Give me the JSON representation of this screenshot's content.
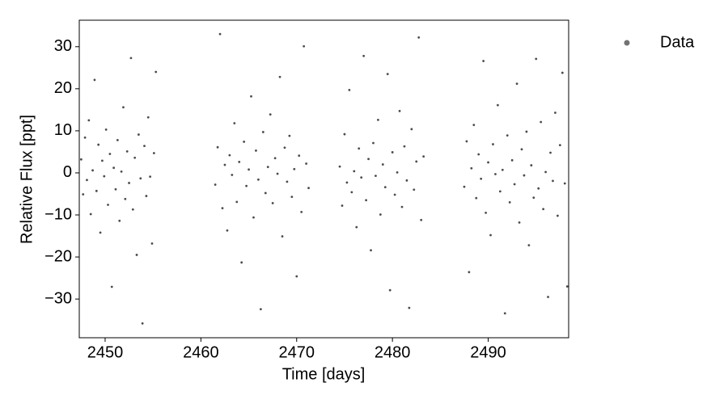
{
  "chart_data": {
    "type": "scatter",
    "xlabel": "Time [days]",
    "ylabel": "Relative Flux [ppt]",
    "xlim": [
      2447.3,
      2498.4
    ],
    "ylim": [
      -39.2,
      36.3
    ],
    "xticks": [
      2450,
      2460,
      2470,
      2480,
      2490
    ],
    "yticks": [
      {
        "value": -30,
        "label": "−30"
      },
      {
        "value": -20,
        "label": "−20"
      },
      {
        "value": -10,
        "label": "−10"
      },
      0,
      10,
      20,
      30
    ],
    "grid": false,
    "legend": "outside-right",
    "series": [
      {
        "name": "Data",
        "color": "#000000",
        "x": [
          2447.5,
          2447.7,
          2447.9,
          2448.1,
          2448.3,
          2448.5,
          2448.7,
          2448.9,
          2449.1,
          2449.3,
          2449.5,
          2449.7,
          2449.9,
          2450.1,
          2450.3,
          2450.5,
          2450.7,
          2450.9,
          2451.1,
          2451.3,
          2451.5,
          2451.7,
          2451.9,
          2452.1,
          2452.3,
          2452.5,
          2452.7,
          2452.9,
          2453.1,
          2453.3,
          2453.5,
          2453.7,
          2453.9,
          2454.1,
          2454.3,
          2454.5,
          2454.7,
          2454.9,
          2455.1,
          2455.3,
          2461.5,
          2461.75,
          2462.0,
          2462.25,
          2462.5,
          2462.75,
          2463.0,
          2463.25,
          2463.5,
          2463.75,
          2464.0,
          2464.25,
          2464.5,
          2464.75,
          2465.0,
          2465.25,
          2465.5,
          2465.75,
          2466.0,
          2466.25,
          2466.5,
          2466.75,
          2467.0,
          2467.25,
          2467.5,
          2467.75,
          2468.0,
          2468.25,
          2468.5,
          2468.75,
          2469.0,
          2469.25,
          2469.5,
          2469.75,
          2470.0,
          2470.25,
          2470.5,
          2470.75,
          2471.0,
          2471.25,
          2474.5,
          2474.75,
          2475.0,
          2475.25,
          2475.5,
          2475.75,
          2476.0,
          2476.25,
          2476.5,
          2476.75,
          2477.0,
          2477.25,
          2477.5,
          2477.75,
          2478.0,
          2478.25,
          2478.5,
          2478.75,
          2479.0,
          2479.25,
          2479.5,
          2479.75,
          2480.0,
          2480.25,
          2480.5,
          2480.75,
          2481.0,
          2481.25,
          2481.5,
          2481.75,
          2482.0,
          2482.25,
          2482.5,
          2482.75,
          2483.0,
          2483.25,
          2487.5,
          2487.75,
          2488.0,
          2488.25,
          2488.5,
          2488.75,
          2489.0,
          2489.25,
          2489.5,
          2489.75,
          2490.0,
          2490.25,
          2490.5,
          2490.75,
          2491.0,
          2491.25,
          2491.5,
          2491.75,
          2492.0,
          2492.25,
          2492.5,
          2492.75,
          2493.0,
          2493.25,
          2493.5,
          2493.75,
          2494.0,
          2494.25,
          2494.5,
          2494.75,
          2495.0,
          2495.25,
          2495.5,
          2495.75,
          2496.0,
          2496.25,
          2496.5,
          2496.75,
          2497.0,
          2497.25,
          2497.5,
          2497.75,
          2498.0,
          2498.25
        ],
        "values": [
          3.2,
          -5.1,
          8.4,
          -1.7,
          12.5,
          -9.8,
          0.6,
          22.1,
          -4.3,
          6.7,
          -14.2,
          2.9,
          -0.8,
          10.3,
          -7.6,
          4.5,
          -27.1,
          1.2,
          -3.9,
          7.8,
          -11.4,
          0.3,
          15.6,
          -6.2,
          5.1,
          -2.4,
          27.3,
          -8.7,
          3.6,
          -19.5,
          9.1,
          -1.3,
          -35.8,
          6.4,
          -5.5,
          13.2,
          -0.9,
          -16.8,
          4.7,
          24.0,
          -2.8,
          6.1,
          33.0,
          -8.4,
          1.9,
          -13.7,
          4.2,
          -0.5,
          11.8,
          -6.9,
          2.6,
          -21.3,
          7.4,
          -3.1,
          0.8,
          18.2,
          -10.6,
          5.3,
          -1.6,
          -32.4,
          9.7,
          -4.8,
          1.4,
          13.9,
          -7.2,
          3.5,
          -0.2,
          22.8,
          -15.1,
          6.0,
          -2.1,
          8.8,
          -5.7,
          0.9,
          -24.6,
          4.1,
          -9.3,
          30.1,
          2.2,
          -3.6,
          1.5,
          -7.8,
          9.2,
          -2.3,
          19.7,
          -4.6,
          0.4,
          -12.9,
          5.8,
          -1.1,
          27.8,
          -6.5,
          3.3,
          -18.4,
          7.1,
          -0.7,
          12.6,
          -9.9,
          2.0,
          -3.4,
          23.5,
          -27.9,
          4.9,
          -5.2,
          0.1,
          14.7,
          -8.1,
          6.3,
          -1.8,
          -32.1,
          10.4,
          -4.0,
          2.7,
          32.2,
          -11.2,
          3.9,
          -3.3,
          7.5,
          -23.6,
          1.1,
          11.4,
          -6.0,
          4.4,
          -1.4,
          26.6,
          -9.5,
          2.5,
          -14.8,
          6.8,
          -0.3,
          16.1,
          -4.4,
          0.7,
          -33.4,
          8.9,
          -7.0,
          3.0,
          -2.7,
          21.2,
          -11.8,
          5.6,
          -0.6,
          9.8,
          -17.2,
          1.8,
          -5.9,
          27.1,
          -3.7,
          12.1,
          -8.6,
          0.2,
          -29.5,
          4.8,
          -1.9,
          14.3,
          -10.2,
          6.6,
          23.8,
          -2.5,
          -27.0
        ]
      }
    ]
  }
}
